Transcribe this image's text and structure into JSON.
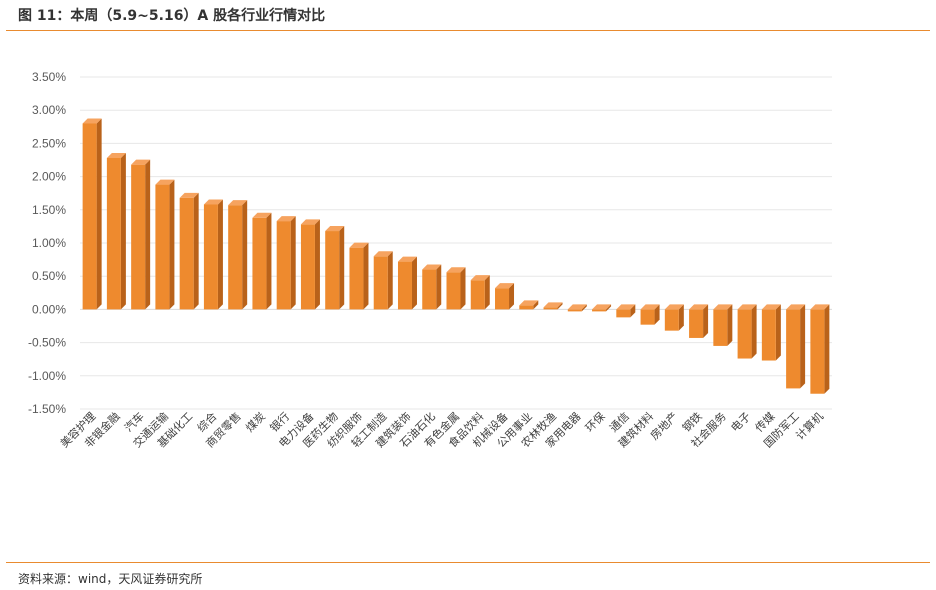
{
  "figure": {
    "title": "图 11：本周（5.9~5.16）A 股各行业行情对比",
    "source": "资料来源：wind，天风证券研究所"
  },
  "colors": {
    "accent_rule": "#e98b2f",
    "bar_front": "#ee8a2e",
    "bar_top": "#f6a35f",
    "bar_side": "#b9621a",
    "gridline": "#e7e7e7",
    "baseline": "#d9d9d9"
  },
  "chart_data": {
    "type": "bar",
    "title": "",
    "xlabel": "",
    "ylabel": "",
    "ylim": [
      -0.015,
      0.035
    ],
    "y_ticks": [
      "3.50%",
      "3.00%",
      "2.50%",
      "2.00%",
      "1.50%",
      "1.00%",
      "0.50%",
      "0.00%",
      "-0.50%",
      "-1.00%",
      "-1.50%"
    ],
    "y_tick_values": [
      0.035,
      0.03,
      0.025,
      0.02,
      0.015,
      0.01,
      0.005,
      0.0,
      -0.005,
      -0.01,
      -0.015
    ],
    "grid": true,
    "legend": "none",
    "categories": [
      "美容护理",
      "非银金融",
      "汽车",
      "交通运输",
      "基础化工",
      "综合",
      "商贸零售",
      "煤炭",
      "银行",
      "电力设备",
      "医药生物",
      "纺织服饰",
      "轻工制造",
      "建筑装饰",
      "石油石化",
      "有色金属",
      "食品饮料",
      "机械设备",
      "公用事业",
      "农林牧渔",
      "家用电器",
      "环保",
      "通信",
      "建筑材料",
      "房地产",
      "钢铁",
      "社会服务",
      "电子",
      "传媒",
      "国防军工",
      "计算机"
    ],
    "values": [
      0.028,
      0.0228,
      0.0218,
      0.0188,
      0.0168,
      0.0158,
      0.0157,
      0.0138,
      0.0133,
      0.0128,
      0.0118,
      0.0093,
      0.008,
      0.0072,
      0.006,
      0.0056,
      0.0044,
      0.0032,
      0.0006,
      0.0003,
      -0.0003,
      -0.0003,
      -0.0012,
      -0.0023,
      -0.0032,
      -0.0043,
      -0.0055,
      -0.0074,
      -0.0077,
      -0.0119,
      -0.0127
    ]
  }
}
